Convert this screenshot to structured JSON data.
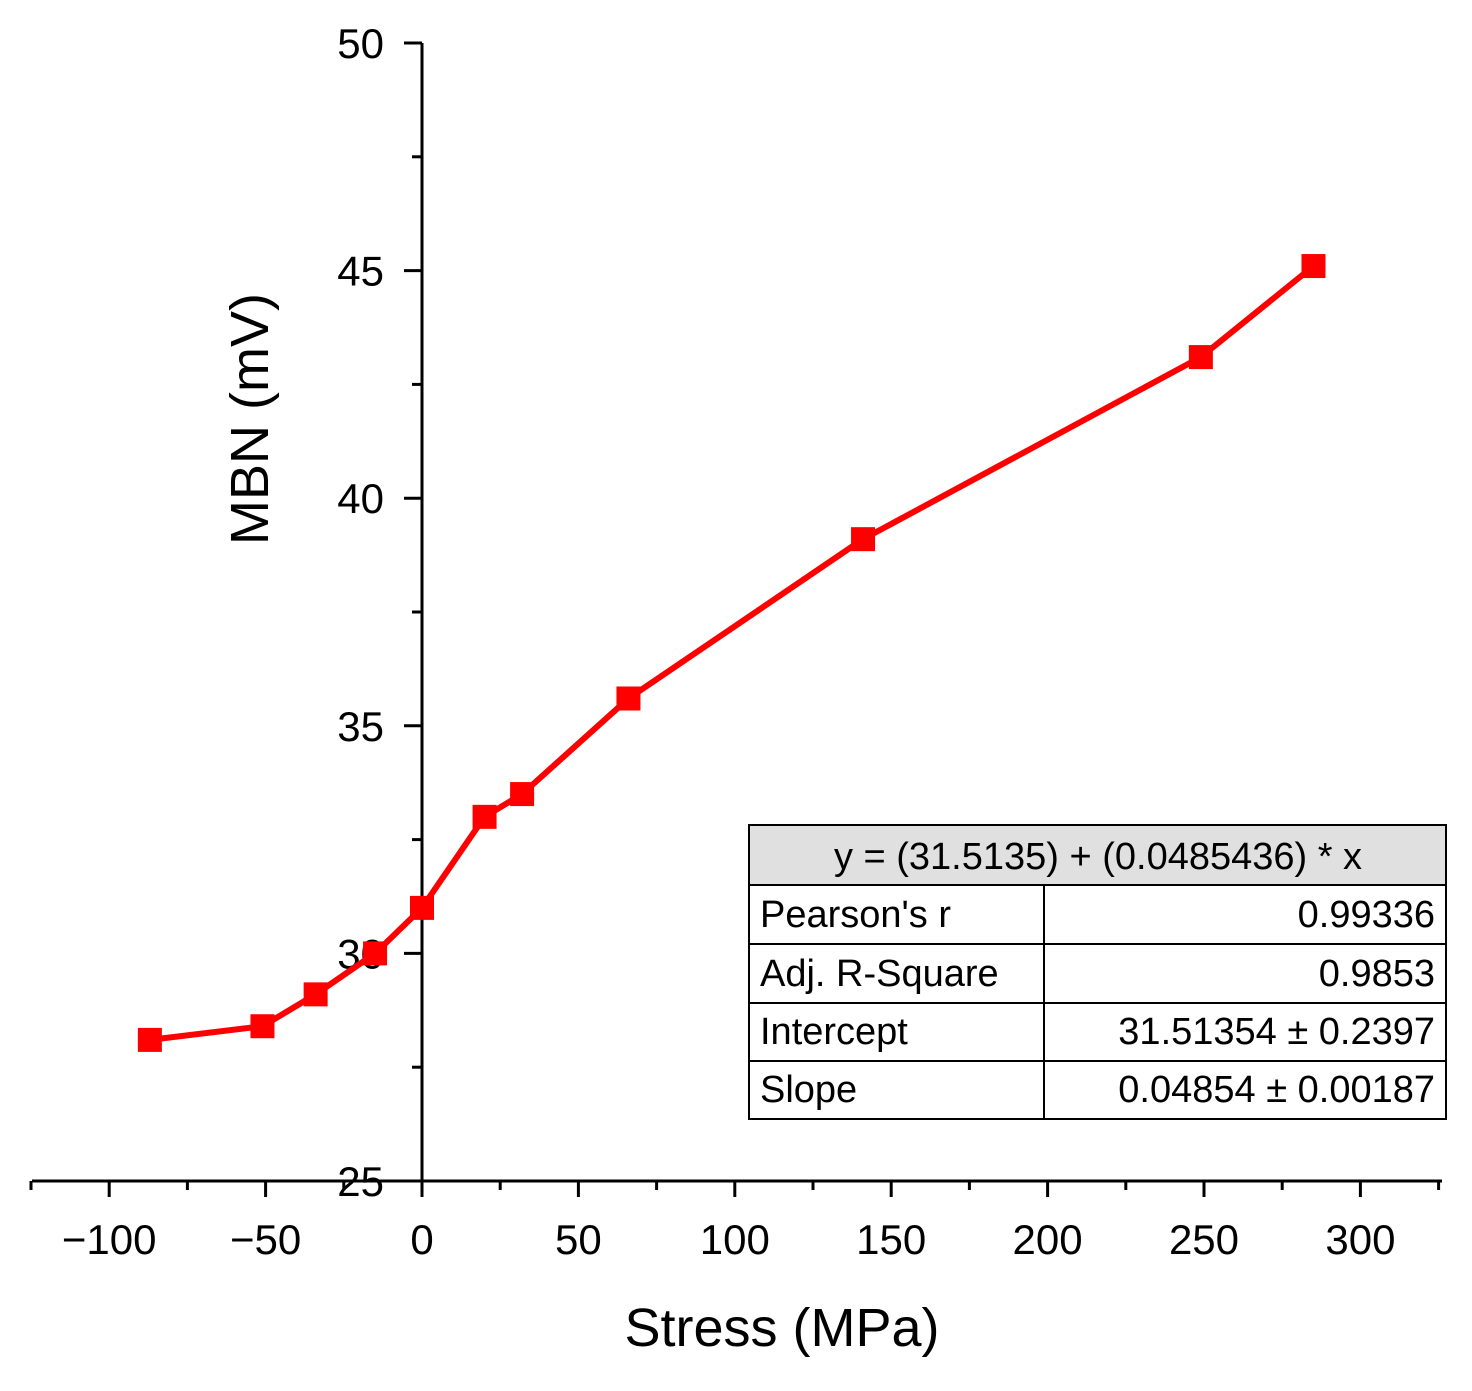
{
  "chart_data": {
    "type": "line",
    "title": "",
    "xlabel": "Stress (MPa)",
    "ylabel": "MBN (mV)",
    "xlim": [
      -125,
      325
    ],
    "ylim": [
      25,
      50
    ],
    "x_ticks": [
      -100,
      -50,
      0,
      50,
      100,
      150,
      200,
      250,
      300
    ],
    "x_tick_labels": [
      "−100",
      "−50",
      "0",
      "50",
      "100",
      "150",
      "200",
      "250",
      "300"
    ],
    "y_ticks": [
      25,
      30,
      35,
      40,
      45,
      50
    ],
    "y_tick_labels": [
      "25",
      "30",
      "35",
      "40",
      "45",
      "50"
    ],
    "grid": false,
    "series": [
      {
        "color": "#ff0000",
        "marker": "square",
        "points": [
          {
            "x": -87,
            "y": 28.1
          },
          {
            "x": -51,
            "y": 28.4
          },
          {
            "x": -34,
            "y": 29.1
          },
          {
            "x": -15,
            "y": 30.0
          },
          {
            "x": 0,
            "y": 31.0
          },
          {
            "x": 20,
            "y": 33.0
          },
          {
            "x": 32,
            "y": 33.5
          },
          {
            "x": 66,
            "y": 35.6
          },
          {
            "x": 141,
            "y": 39.1
          },
          {
            "x": 249,
            "y": 43.1
          },
          {
            "x": 285,
            "y": 45.1
          }
        ]
      }
    ],
    "fit_table": {
      "equation": "y = (31.5135) + (0.0485436) * x",
      "rows": [
        {
          "label": "Pearson's r",
          "value": "0.99336"
        },
        {
          "label": "Adj. R-Square",
          "value": "0.9853"
        },
        {
          "label": "Intercept",
          "value": "31.51354 ± 0.2397"
        },
        {
          "label": "Slope",
          "value": "0.04854 ± 0.00187"
        }
      ],
      "placement": "bottom-right"
    }
  }
}
